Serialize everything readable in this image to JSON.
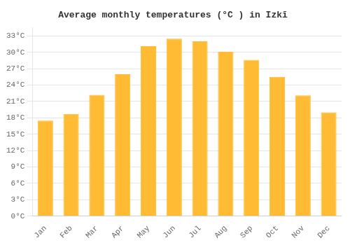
{
  "chart_data": {
    "type": "bar",
    "title": "Average monthly temperatures (°C ) in Izkī",
    "categories": [
      "Jan",
      "Feb",
      "Mar",
      "Apr",
      "May",
      "Jun",
      "Jul",
      "Aug",
      "Sep",
      "Oct",
      "Nov",
      "Dec"
    ],
    "values": [
      17.5,
      18.7,
      22.2,
      26.0,
      31.1,
      32.5,
      32.0,
      30.1,
      28.6,
      25.5,
      22.1,
      19.0
    ],
    "color": "#FFBB33",
    "ylim": [
      0,
      34.5
    ],
    "yticks": [
      {
        "value": 0,
        "label": "0°C"
      },
      {
        "value": 3,
        "label": "3°C"
      },
      {
        "value": 6,
        "label": "6°C"
      },
      {
        "value": 9,
        "label": "9°C"
      },
      {
        "value": 12,
        "label": "12°C"
      },
      {
        "value": 15,
        "label": "15°C"
      },
      {
        "value": 18,
        "label": "18°C"
      },
      {
        "value": 21,
        "label": "21°C"
      },
      {
        "value": 24,
        "label": "24°C"
      },
      {
        "value": 27,
        "label": "27°C"
      },
      {
        "value": 30,
        "label": "30°C"
      },
      {
        "value": 33,
        "label": "33°C"
      }
    ],
    "grid": true
  }
}
